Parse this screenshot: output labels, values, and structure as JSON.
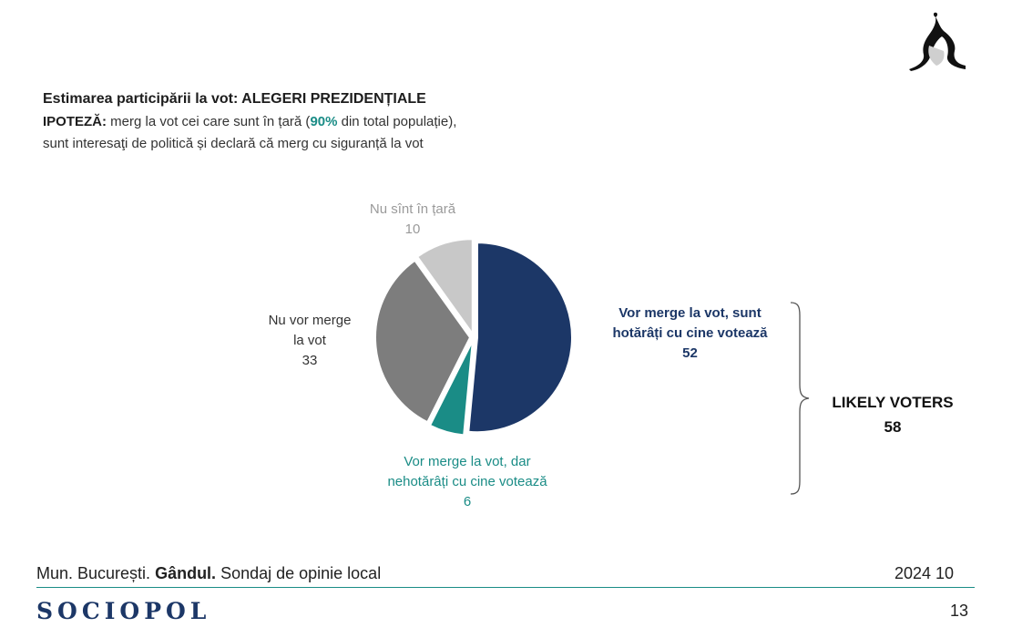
{
  "header": {
    "title": "Estimarea participării la vot: ALEGERI PREZIDENȚIALE",
    "hypothesis_label": "IPOTEZĂ:",
    "hypothesis_pre": " merg la vot cei care sunt în țară (",
    "hypothesis_pct": "90%",
    "hypothesis_post": " din total populație),",
    "hypothesis_line2": "sunt interesaţi de politică și declară că merg cu siguranță la vot"
  },
  "chart_data": {
    "type": "pie",
    "title": "",
    "slices": [
      {
        "label_lines": [
          "Vor merge la vot, sunt",
          "hotărâți cu cine votează"
        ],
        "value": 52,
        "color": "#1c3767"
      },
      {
        "label_lines": [
          "Vor merge la vot, dar",
          "nehotărâți cu cine votează"
        ],
        "value": 6,
        "color": "#1a8c86"
      },
      {
        "label_lines": [
          "Nu vor merge",
          "la vot"
        ],
        "value": 33,
        "color": "#7d7d7d"
      },
      {
        "label_lines": [
          "Nu sînt în țară"
        ],
        "value": 10,
        "color": "#c8c8c8"
      }
    ],
    "value_labels": [
      "52",
      "6",
      "33",
      "10"
    ],
    "bracket_label": "LIKELY VOTERS",
    "bracket_value": "58"
  },
  "footer": {
    "source_pre": "Mun. București. ",
    "source_bold": "Gândul.",
    "source_post": " Sondaj de opinie local",
    "date": "2024 10",
    "brand": "SOCIOPOL",
    "page": "13"
  },
  "logo": {
    "icon": "penguin-mountain-logo"
  }
}
